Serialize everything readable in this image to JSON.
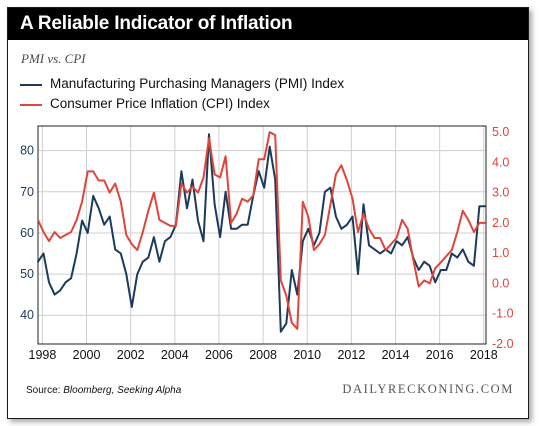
{
  "header": {
    "title": "A Reliable Indicator of Inflation",
    "subtitle": "PMI vs. CPI"
  },
  "legend": {
    "items": [
      {
        "label": "Manufacturing Purchasing Managers (PMI) Index",
        "color": "#1b3a5c"
      },
      {
        "label": "Consumer Price Inflation (CPI) Index",
        "color": "#e0443a"
      }
    ]
  },
  "footer": {
    "source_prefix": "Source: ",
    "source_text": "Bloomberg, Seeking Alpha",
    "brand": "DAILYRECKONING.COM"
  },
  "chart_data": {
    "type": "line",
    "title": "A Reliable Indicator of Inflation",
    "subtitle": "PMI vs. CPI",
    "x_ticks": [
      "1998",
      "2000",
      "2002",
      "2004",
      "2006",
      "2008",
      "2010",
      "2012",
      "2014",
      "2016",
      "2018"
    ],
    "x_range": [
      1997.8,
      2018.1
    ],
    "y_left": {
      "range": [
        33,
        86
      ],
      "ticks": [
        "40",
        "50",
        "60",
        "70",
        "80"
      ],
      "color": "#1b3a5c"
    },
    "y_right": {
      "range": [
        -2.0,
        5.2
      ],
      "ticks": [
        "-2.0",
        "-1.0",
        "0.0",
        "1.0",
        "2.0",
        "3.0",
        "4.0",
        "5.0"
      ],
      "color": "#e0443a"
    },
    "grid": true,
    "series": [
      {
        "name": "Manufacturing Purchasing Managers (PMI) Index",
        "axis": "left",
        "color": "#1b3a5c",
        "x": [
          1997.8,
          1998.05,
          1998.3,
          1998.55,
          1998.8,
          1999.05,
          1999.3,
          1999.55,
          1999.8,
          2000.05,
          2000.3,
          2000.55,
          2000.8,
          2001.05,
          2001.3,
          2001.55,
          2001.8,
          2002.05,
          2002.3,
          2002.55,
          2002.8,
          2003.05,
          2003.3,
          2003.55,
          2003.8,
          2004.05,
          2004.3,
          2004.55,
          2004.8,
          2005.05,
          2005.3,
          2005.55,
          2005.8,
          2006.05,
          2006.3,
          2006.55,
          2006.8,
          2007.05,
          2007.3,
          2007.55,
          2007.8,
          2008.05,
          2008.3,
          2008.55,
          2008.8,
          2009.05,
          2009.3,
          2009.55,
          2009.8,
          2010.05,
          2010.3,
          2010.55,
          2010.8,
          2011.05,
          2011.3,
          2011.55,
          2011.8,
          2012.05,
          2012.3,
          2012.55,
          2012.8,
          2013.05,
          2013.3,
          2013.55,
          2013.8,
          2014.05,
          2014.3,
          2014.55,
          2014.8,
          2015.05,
          2015.3,
          2015.55,
          2015.8,
          2016.05,
          2016.3,
          2016.55,
          2016.8,
          2017.05,
          2017.3,
          2017.55,
          2017.8,
          2018.05
        ],
        "values": [
          53,
          55,
          48,
          45,
          46,
          48,
          49,
          55,
          63,
          60,
          69,
          66,
          62,
          64,
          56,
          55,
          50,
          42,
          50,
          53,
          54,
          59,
          53,
          58,
          59,
          62,
          75,
          66,
          73,
          63,
          58,
          84,
          67,
          59,
          70,
          61,
          61,
          62,
          62,
          69,
          75,
          71,
          81,
          73,
          36,
          38,
          51,
          45,
          58,
          61,
          57,
          60,
          70,
          71,
          64,
          61,
          62,
          64,
          50,
          67,
          57,
          56,
          55,
          56,
          55,
          58,
          57,
          59,
          54,
          51,
          53,
          52,
          48,
          51,
          51,
          55,
          54,
          56,
          53,
          52,
          66.5,
          66.5
        ]
      },
      {
        "name": "Consumer Price Inflation (CPI) Index",
        "axis": "right",
        "color": "#e0443a",
        "x": [
          1997.8,
          1998.05,
          1998.3,
          1998.55,
          1998.8,
          1999.05,
          1999.3,
          1999.55,
          1999.8,
          2000.05,
          2000.3,
          2000.55,
          2000.8,
          2001.05,
          2001.3,
          2001.55,
          2001.8,
          2002.05,
          2002.3,
          2002.55,
          2002.8,
          2003.05,
          2003.3,
          2003.55,
          2003.8,
          2004.05,
          2004.3,
          2004.55,
          2004.8,
          2005.05,
          2005.3,
          2005.55,
          2005.8,
          2006.05,
          2006.3,
          2006.55,
          2006.8,
          2007.05,
          2007.3,
          2007.55,
          2007.8,
          2008.05,
          2008.3,
          2008.55,
          2008.8,
          2009.05,
          2009.3,
          2009.55,
          2009.8,
          2010.05,
          2010.3,
          2010.55,
          2010.8,
          2011.05,
          2011.3,
          2011.55,
          2011.8,
          2012.05,
          2012.3,
          2012.55,
          2012.8,
          2013.05,
          2013.3,
          2013.55,
          2013.8,
          2014.05,
          2014.3,
          2014.55,
          2014.8,
          2015.05,
          2015.3,
          2015.55,
          2015.8,
          2016.05,
          2016.3,
          2016.55,
          2016.8,
          2017.05,
          2017.3,
          2017.55,
          2017.8,
          2018.05
        ],
        "values": [
          2.1,
          1.7,
          1.4,
          1.7,
          1.5,
          1.6,
          1.7,
          2.1,
          2.7,
          3.7,
          3.7,
          3.4,
          3.4,
          3.0,
          3.3,
          2.7,
          1.6,
          1.3,
          1.1,
          1.7,
          2.4,
          3.0,
          2.1,
          2.0,
          1.9,
          1.9,
          3.3,
          3.0,
          3.2,
          3.0,
          3.5,
          4.8,
          3.6,
          3.5,
          4.2,
          2.0,
          2.3,
          2.8,
          2.7,
          2.9,
          4.1,
          4.1,
          5.0,
          4.9,
          0.1,
          -0.4,
          -1.3,
          -1.5,
          2.7,
          2.2,
          1.1,
          1.3,
          1.6,
          2.6,
          3.6,
          3.9,
          3.4,
          2.8,
          1.7,
          2.3,
          1.8,
          1.5,
          1.5,
          1.1,
          1.3,
          1.5,
          2.1,
          1.8,
          0.8,
          -0.1,
          0.1,
          0.0,
          0.5,
          0.7,
          0.9,
          1.1,
          1.7,
          2.4,
          2.1,
          1.7,
          2.0,
          2.0
        ]
      }
    ]
  }
}
